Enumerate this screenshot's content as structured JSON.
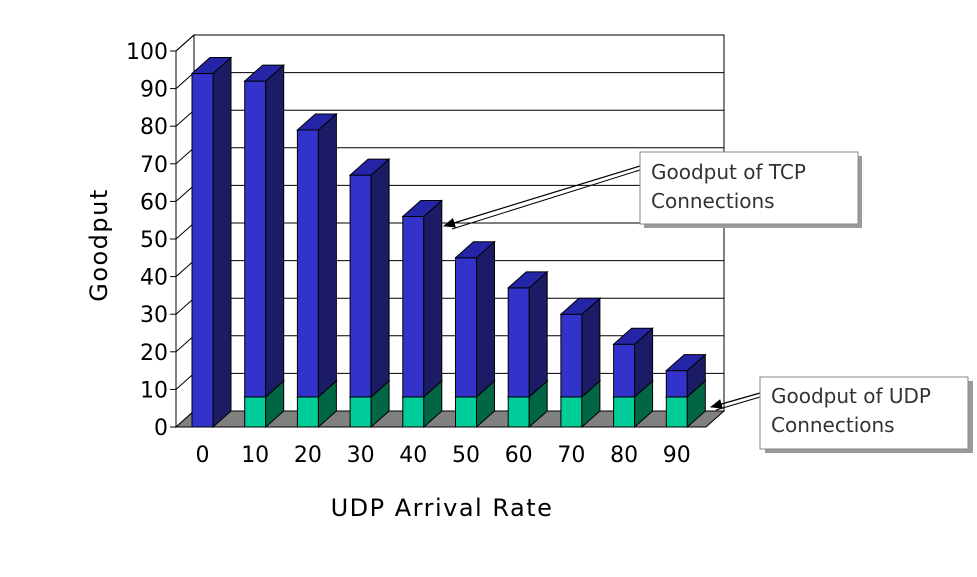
{
  "chart_data": {
    "type": "bar",
    "stacked": true,
    "three_d": true,
    "categories": [
      "0",
      "10",
      "20",
      "30",
      "40",
      "50",
      "60",
      "70",
      "80",
      "90"
    ],
    "series": [
      {
        "name": "Goodput of UDP Connections",
        "values": [
          0,
          8,
          8,
          8,
          8,
          8,
          8,
          8,
          8,
          8
        ]
      },
      {
        "name": "Goodput of TCP Connections",
        "values": [
          94,
          84,
          71,
          59,
          48,
          37,
          29,
          22,
          14,
          7
        ]
      }
    ],
    "xlabel": "UDP Arrival Rate",
    "ylabel": "Goodput",
    "ylim": [
      0,
      100
    ],
    "yticks": [
      0,
      10,
      20,
      30,
      40,
      50,
      60,
      70,
      80,
      90,
      100
    ],
    "grid": true,
    "colors": {
      "tcp_front": "#3333cc",
      "tcp_side": "#1c1c66",
      "tcp_top": "#2525a8",
      "udp_front": "#00cc99",
      "udp_side": "#006644",
      "udp_top": "#00a37a",
      "floor": "#808080"
    },
    "annotations": [
      {
        "series": "Goodput of TCP Connections",
        "lines": [
          "Goodput of TCP",
          "Connections"
        ]
      },
      {
        "series": "Goodput of UDP Connections",
        "lines": [
          "Goodput of UDP",
          "Connections"
        ]
      }
    ]
  }
}
